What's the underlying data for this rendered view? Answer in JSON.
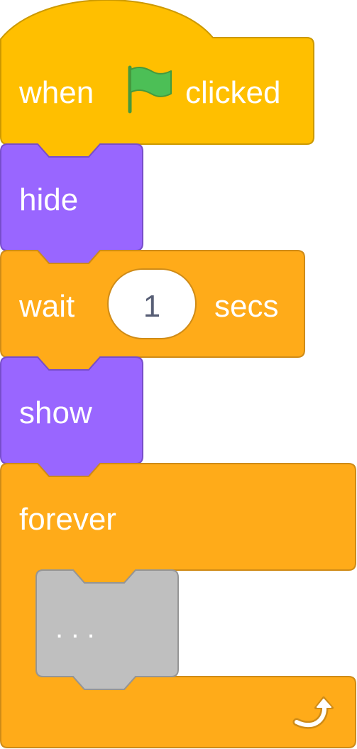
{
  "colors": {
    "events": "#FFBF00",
    "events_border": "#CC9900",
    "looks": "#9966FF",
    "looks_border": "#774DCB",
    "control": "#FFAB19",
    "control_border": "#CF8B17",
    "placeholder": "#BFBFBF",
    "placeholder_border": "#959595",
    "flag": "#4CBF56",
    "flag_pole": "#45993D",
    "input_fill": "#FFFFFF",
    "input_text": "#575E75"
  },
  "script": {
    "hat": {
      "label_before": "when",
      "icon": "green-flag-icon",
      "label_after": "clicked"
    },
    "hide": {
      "label": "hide"
    },
    "wait": {
      "label_before": "wait",
      "value": "1",
      "label_after": "secs"
    },
    "show": {
      "label": "show"
    },
    "forever": {
      "label": "forever",
      "placeholder": ". . .",
      "icon": "repeat-arrow-icon"
    }
  }
}
